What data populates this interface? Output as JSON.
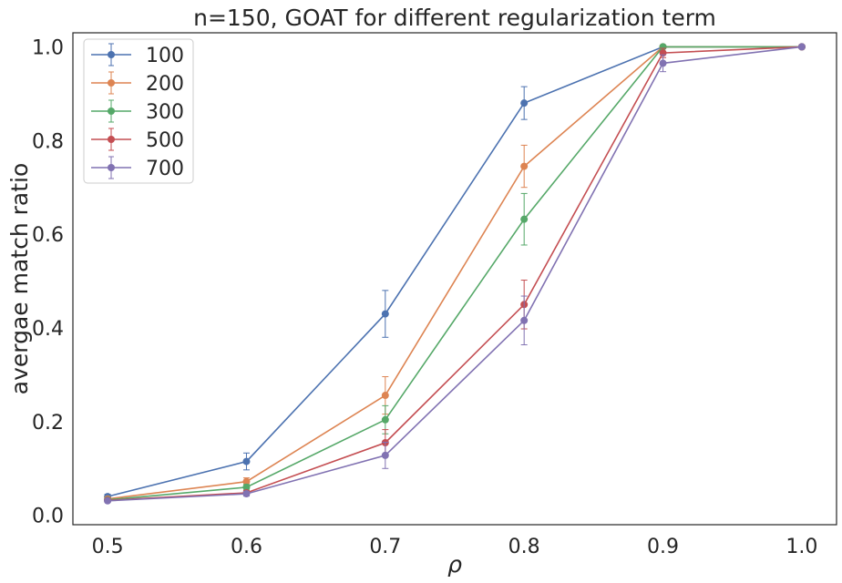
{
  "chart_data": {
    "type": "line",
    "title": "n=150, GOAT for different regularization term",
    "xlabel": "ρ",
    "ylabel": "avergae match ratio",
    "x": [
      0.5,
      0.6,
      0.7,
      0.8,
      0.9,
      1.0
    ],
    "x_ticks": [
      "0.5",
      "0.6",
      "0.7",
      "0.8",
      "0.9",
      "1.0"
    ],
    "y_ticks": [
      "0.0",
      "0.2",
      "0.4",
      "0.6",
      "0.8",
      "1.0"
    ],
    "xlim": [
      0.475,
      1.025
    ],
    "ylim": [
      -0.02,
      1.03
    ],
    "grid": false,
    "legend_position": "top-left",
    "series": [
      {
        "name": "100",
        "color": "#4c72b0",
        "values": [
          0.04,
          0.115,
          0.43,
          0.88,
          1.0,
          1.0
        ],
        "errors": [
          0.005,
          0.018,
          0.05,
          0.035,
          0.0,
          0.0
        ]
      },
      {
        "name": "200",
        "color": "#dd8452",
        "values": [
          0.035,
          0.072,
          0.256,
          0.745,
          1.0,
          1.0
        ],
        "errors": [
          0.004,
          0.008,
          0.04,
          0.045,
          0.0,
          0.0
        ]
      },
      {
        "name": "300",
        "color": "#55a868",
        "values": [
          0.033,
          0.06,
          0.204,
          0.632,
          1.0,
          1.0
        ],
        "errors": [
          0.004,
          0.006,
          0.03,
          0.055,
          0.0,
          0.0
        ]
      },
      {
        "name": "500",
        "color": "#c44e52",
        "values": [
          0.032,
          0.048,
          0.155,
          0.45,
          0.987,
          1.0
        ],
        "errors": [
          0.003,
          0.005,
          0.028,
          0.052,
          0.01,
          0.0
        ]
      },
      {
        "name": "700",
        "color": "#8172b2",
        "values": [
          0.031,
          0.046,
          0.128,
          0.416,
          0.965,
          1.0
        ],
        "errors": [
          0.003,
          0.005,
          0.028,
          0.052,
          0.018,
          0.0
        ]
      }
    ]
  }
}
